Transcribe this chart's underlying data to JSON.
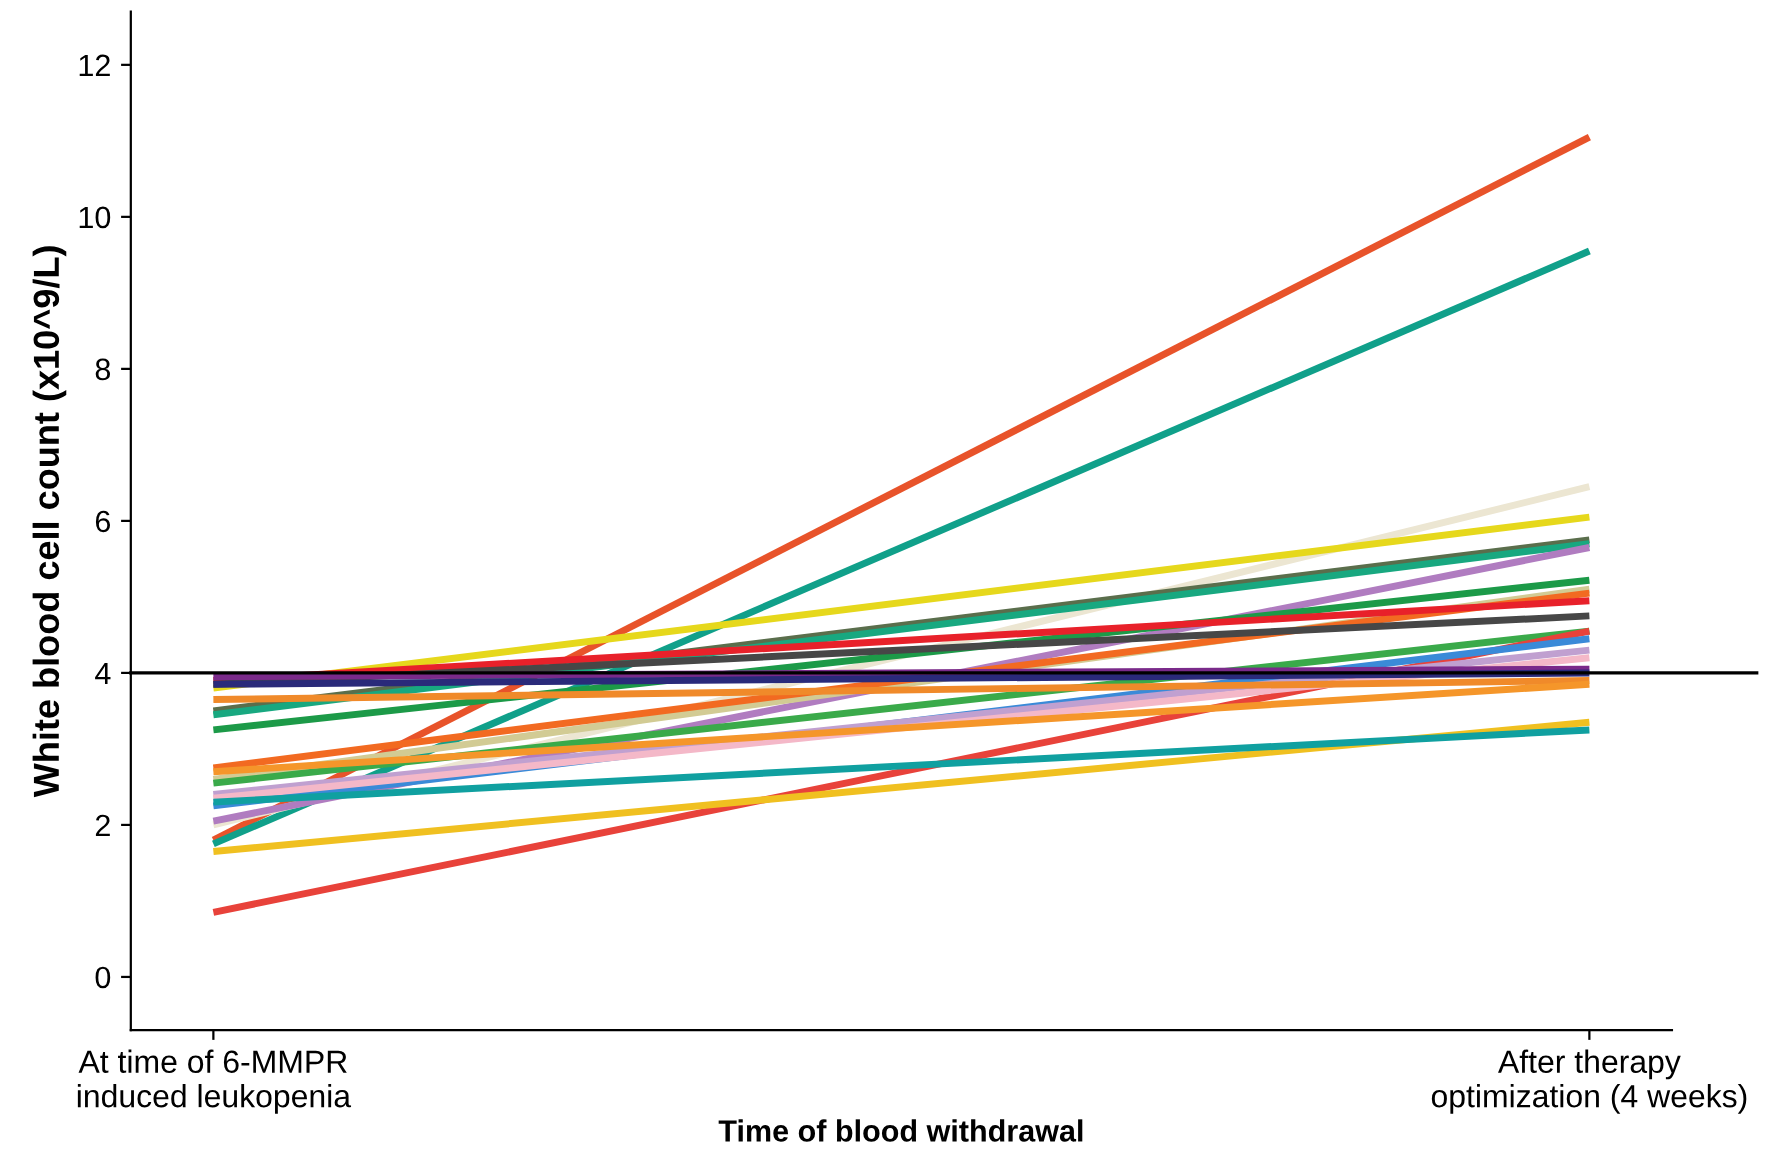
{
  "chart_data": {
    "type": "line",
    "xlabel": "Time of blood withdrawal",
    "ylabel": "White blood cell count (x10^9/L)",
    "categories": [
      "At time of 6-MMPR\ninduced leukopenia",
      "After therapy\noptimization (4 weeks)"
    ],
    "ylim": [
      -0.7,
      12.7
    ],
    "yticks": [
      0,
      2,
      4,
      6,
      8,
      10,
      12
    ],
    "grid": false,
    "legend": false,
    "marker": "none",
    "line_style": "solid",
    "ref_lines": [
      {
        "axis": "y",
        "value": 4,
        "color": "#000000"
      }
    ],
    "series": [
      {
        "color": "#e8532a",
        "values": [
          1.8,
          11.05
        ]
      },
      {
        "color": "#10a08a",
        "values": [
          1.75,
          9.55
        ]
      },
      {
        "color": "#ece6d2",
        "values": [
          2.0,
          6.45
        ]
      },
      {
        "color": "#e6d81c",
        "values": [
          3.8,
          6.05
        ]
      },
      {
        "color": "#5a6e4c",
        "values": [
          3.5,
          5.75
        ]
      },
      {
        "color": "#18a880",
        "values": [
          3.45,
          5.7
        ]
      },
      {
        "color": "#b07cc0",
        "values": [
          2.05,
          5.65
        ]
      },
      {
        "color": "#1c9a48",
        "values": [
          3.25,
          5.22
        ]
      },
      {
        "color": "#d2cb94",
        "values": [
          2.6,
          5.1
        ]
      },
      {
        "color": "#f26a21",
        "values": [
          2.75,
          5.05
        ]
      },
      {
        "color": "#e8212a",
        "values": [
          3.9,
          4.95
        ]
      },
      {
        "color": "#474747",
        "values": [
          3.85,
          4.75
        ]
      },
      {
        "color": "#3aaa4a",
        "values": [
          2.55,
          4.55
        ]
      },
      {
        "color": "#e8423a",
        "values": [
          0.85,
          4.55
        ]
      },
      {
        "color": "#3a8ad8",
        "values": [
          2.25,
          4.45
        ]
      },
      {
        "color": "#c0a0d0",
        "values": [
          2.4,
          4.3
        ]
      },
      {
        "color": "#f4b8c8",
        "values": [
          2.35,
          4.2
        ]
      },
      {
        "color": "#7a2a8a",
        "values": [
          3.95,
          4.05
        ]
      },
      {
        "color": "#2a2a7a",
        "values": [
          3.85,
          4.0
        ]
      },
      {
        "color": "#f08a2a",
        "values": [
          3.65,
          3.9
        ]
      },
      {
        "color": "#f5962a",
        "values": [
          2.7,
          3.85
        ]
      },
      {
        "color": "#f0c020",
        "values": [
          1.65,
          3.35
        ]
      },
      {
        "color": "#10a0a0",
        "values": [
          2.3,
          3.25
        ]
      }
    ]
  }
}
